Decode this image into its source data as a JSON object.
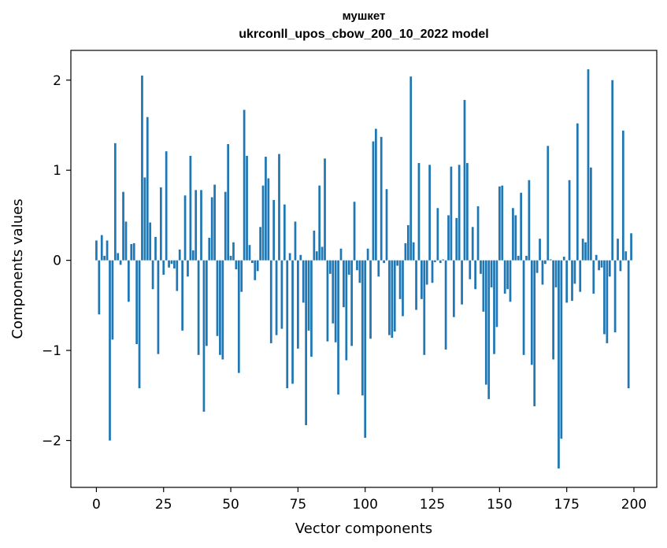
{
  "chart_data": {
    "type": "bar",
    "title": "мушкет",
    "subtitle": "ukrconll_upos_cbow_200_10_2022 model",
    "xlabel": "Vector components",
    "ylabel": "Components values",
    "xlim": [
      -9.5,
      208.5
    ],
    "ylim": [
      -2.52,
      2.33
    ],
    "xticks": [
      0,
      25,
      50,
      75,
      100,
      125,
      150,
      175,
      200
    ],
    "xtick_labels": [
      "0",
      "25",
      "50",
      "75",
      "100",
      "125",
      "150",
      "175",
      "200"
    ],
    "yticks": [
      -2,
      -1,
      0,
      1,
      2
    ],
    "ytick_labels": [
      "−2",
      "−1",
      "0",
      "1",
      "2"
    ],
    "bar_color": "#1f77b4",
    "grid": false,
    "x": [
      0,
      1,
      2,
      3,
      4,
      5,
      6,
      7,
      8,
      9,
      10,
      11,
      12,
      13,
      14,
      15,
      16,
      17,
      18,
      19,
      20,
      21,
      22,
      23,
      24,
      25,
      26,
      27,
      28,
      29,
      30,
      31,
      32,
      33,
      34,
      35,
      36,
      37,
      38,
      39,
      40,
      41,
      42,
      43,
      44,
      45,
      46,
      47,
      48,
      49,
      50,
      51,
      52,
      53,
      54,
      55,
      56,
      57,
      58,
      59,
      60,
      61,
      62,
      63,
      64,
      65,
      66,
      67,
      68,
      69,
      70,
      71,
      72,
      73,
      74,
      75,
      76,
      77,
      78,
      79,
      80,
      81,
      82,
      83,
      84,
      85,
      86,
      87,
      88,
      89,
      90,
      91,
      92,
      93,
      94,
      95,
      96,
      97,
      98,
      99,
      100,
      101,
      102,
      103,
      104,
      105,
      106,
      107,
      108,
      109,
      110,
      111,
      112,
      113,
      114,
      115,
      116,
      117,
      118,
      119,
      120,
      121,
      122,
      123,
      124,
      125,
      126,
      127,
      128,
      129,
      130,
      131,
      132,
      133,
      134,
      135,
      136,
      137,
      138,
      139,
      140,
      141,
      142,
      143,
      144,
      145,
      146,
      147,
      148,
      149,
      150,
      151,
      152,
      153,
      154,
      155,
      156,
      157,
      158,
      159,
      160,
      161,
      162,
      163,
      164,
      165,
      166,
      167,
      168,
      169,
      170,
      171,
      172,
      173,
      174,
      175,
      176,
      177,
      178,
      179,
      180,
      181,
      182,
      183,
      184,
      185,
      186,
      187,
      188,
      189,
      190,
      191,
      192,
      193,
      194,
      195,
      196,
      197,
      198,
      199
    ],
    "values": [
      0.22,
      -0.6,
      0.28,
      0.05,
      0.22,
      -2.0,
      -0.88,
      1.3,
      0.08,
      -0.05,
      0.76,
      0.43,
      -0.46,
      0.18,
      0.19,
      -0.93,
      -1.42,
      2.05,
      0.92,
      1.59,
      0.42,
      -0.32,
      0.26,
      -1.04,
      0.81,
      -0.16,
      1.21,
      -0.08,
      -0.04,
      -0.09,
      -0.34,
      0.12,
      -0.78,
      0.72,
      -0.18,
      1.16,
      0.11,
      0.78,
      -1.05,
      0.78,
      -1.68,
      -0.95,
      0.25,
      0.7,
      0.84,
      -0.84,
      -1.05,
      -1.1,
      0.76,
      1.29,
      0.05,
      0.2,
      -0.1,
      -1.25,
      -0.35,
      1.67,
      1.16,
      0.17,
      -0.03,
      -0.22,
      -0.12,
      0.37,
      0.83,
      1.15,
      0.91,
      -0.92,
      0.67,
      -0.83,
      1.18,
      -0.76,
      0.62,
      -1.42,
      0.08,
      -1.37,
      0.43,
      -0.98,
      0.06,
      -0.47,
      -1.83,
      -0.78,
      -1.07,
      0.33,
      0.1,
      0.83,
      0.15,
      1.13,
      -0.9,
      -0.15,
      -0.7,
      -0.91,
      -1.49,
      0.13,
      -0.52,
      -1.11,
      -0.16,
      -0.95,
      0.65,
      -0.11,
      -0.25,
      -1.5,
      -1.97,
      0.13,
      -0.87,
      1.32,
      1.46,
      -0.18,
      1.37,
      -0.03,
      0.79,
      -0.83,
      -0.86,
      -0.79,
      -0.06,
      -0.43,
      -0.62,
      0.19,
      0.39,
      2.04,
      0.2,
      -0.55,
      1.08,
      -0.43,
      -1.05,
      -0.27,
      1.06,
      -0.25,
      -0.02,
      0.58,
      -0.03,
      0.01,
      -0.99,
      0.5,
      1.04,
      -0.63,
      0.47,
      1.06,
      -0.49,
      1.78,
      1.08,
      -0.21,
      0.37,
      -0.32,
      0.6,
      -0.15,
      -0.57,
      -1.38,
      -1.54,
      -0.3,
      -1.04,
      -0.74,
      0.82,
      0.83,
      -0.37,
      -0.32,
      -0.46,
      0.58,
      0.5,
      0.05,
      0.75,
      -1.05,
      0.05,
      0.89,
      -1.16,
      -1.62,
      -0.14,
      0.24,
      -0.27,
      -0.04,
      1.27,
      0.01,
      -1.1,
      -0.3,
      -2.31,
      -1.98,
      0.04,
      -0.47,
      0.89,
      -0.45,
      -0.26,
      1.52,
      -0.35,
      0.24,
      0.2,
      2.12,
      1.03,
      -0.37,
      0.06,
      -0.11,
      -0.08,
      -0.82,
      -0.92,
      -0.18,
      2.0,
      -0.8,
      0.24,
      -0.12,
      1.44,
      0.1,
      -1.42,
      0.3
    ]
  }
}
